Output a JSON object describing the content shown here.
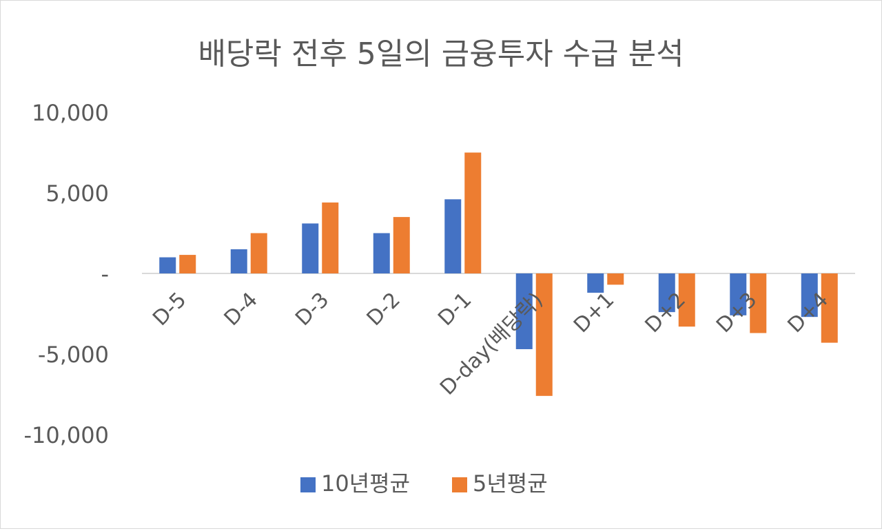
{
  "chart_data": {
    "type": "bar",
    "title": "배당락 전후 5일의 금융투자 수급 분석",
    "categories": [
      "D-5",
      "D-4",
      "D-3",
      "D-2",
      "D-1",
      "D-day(배당락)",
      "D+1",
      "D+2",
      "D+3",
      "D+4"
    ],
    "series": [
      {
        "name": "10년평균",
        "color": "#4472C4",
        "values": [
          1000,
          1500,
          3100,
          2500,
          4600,
          -4700,
          -1200,
          -2400,
          -2600,
          -2700
        ]
      },
      {
        "name": "5년평균",
        "color": "#ED7D31",
        "values": [
          1150,
          2500,
          4400,
          3500,
          7500,
          -7600,
          -700,
          -3300,
          -3700,
          -4300
        ]
      }
    ],
    "ylim": [
      -10000,
      10000
    ],
    "yticks": [
      10000,
      5000,
      0,
      -5000,
      -10000
    ],
    "ytick_labels": [
      "10,000",
      "5,000",
      "-",
      "-5,000",
      "-10,000"
    ],
    "grid": false,
    "legend_position": "bottom",
    "text_color": "#595959",
    "axis_color": "#d9d9d9"
  }
}
